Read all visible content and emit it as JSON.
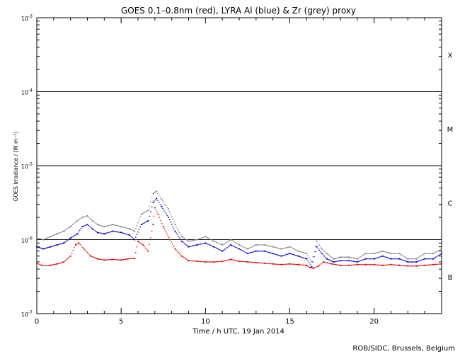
{
  "chart_data": {
    "type": "scatter",
    "title": "GOES 0.1–0.8nm (red), LYRA Al (blue) & Zr (grey) proxy",
    "xlabel": "Time / h UTC, 19 Jan 2014",
    "ylabel": "GOES Irradiance / (W m⁻²)",
    "credit": "ROB/SIDC, Brussels, Belgium",
    "xlim": [
      0,
      24
    ],
    "ylim": [
      1e-07,
      0.001
    ],
    "y_scale": "log",
    "x_ticks": [
      0,
      5,
      10,
      15,
      20
    ],
    "y_ticks": [
      {
        "value": 1e-07,
        "base": "10",
        "exp": "-7"
      },
      {
        "value": 1e-06,
        "base": "10",
        "exp": "-6"
      },
      {
        "value": 1e-05,
        "base": "10",
        "exp": "-5"
      },
      {
        "value": 0.0001,
        "base": "10",
        "exp": "-4"
      },
      {
        "value": 0.001,
        "base": "10",
        "exp": "-3"
      }
    ],
    "flare_classes": [
      {
        "label": "X",
        "value": 0.000316
      },
      {
        "label": "M",
        "value": 3.16e-05
      },
      {
        "label": "C",
        "value": 3.16e-06
      },
      {
        "label": "B",
        "value": 3.16e-07
      }
    ],
    "threshold_lines": [
      1e-06,
      1e-05,
      0.0001
    ],
    "series": [
      {
        "color": "#e00000",
        "x": [
          0.0,
          0.3,
          0.8,
          1.2,
          1.6,
          2.0,
          2.3,
          2.5,
          2.8,
          3.2,
          3.6,
          4.0,
          4.5,
          5.0,
          5.4,
          5.8,
          6.0,
          6.3,
          6.6,
          6.9,
          7.0,
          7.2,
          7.5,
          7.9,
          8.2,
          8.6,
          9.0,
          9.5,
          10.0,
          10.5,
          11.0,
          11.5,
          12.0,
          12.5,
          13.0,
          13.5,
          14.0,
          14.5,
          15.0,
          15.5,
          16.0,
          16.2,
          16.4,
          16.7,
          17.0,
          17.5,
          18.0,
          18.5,
          19.0,
          19.5,
          20.0,
          20.5,
          21.0,
          21.5,
          22.0,
          22.5,
          23.0,
          23.5,
          24.0
        ],
        "y": [
          4.8e-07,
          4.5e-07,
          4.5e-07,
          4.7e-07,
          5e-07,
          6e-07,
          8.5e-07,
          9e-07,
          7.5e-07,
          6e-07,
          5.5e-07,
          5.3e-07,
          5.4e-07,
          5.3e-07,
          5.5e-07,
          5.6e-07,
          9.5e-07,
          8.5e-07,
          7e-07,
          1.6e-06,
          2.7e-06,
          2.2e-06,
          1.5e-06,
          1e-06,
          7.5e-07,
          6e-07,
          5.2e-07,
          5.1e-07,
          5e-07,
          5e-07,
          5.1e-07,
          5.4e-07,
          5.1e-07,
          5e-07,
          4.9e-07,
          4.8e-07,
          4.7e-07,
          4.6e-07,
          4.7e-07,
          4.6e-07,
          4.5e-07,
          4.2e-07,
          4.1e-07,
          4.4e-07,
          5e-07,
          4.7e-07,
          4.5e-07,
          4.5e-07,
          4.6e-07,
          4.6e-07,
          4.6e-07,
          4.5e-07,
          4.6e-07,
          4.5e-07,
          4.4e-07,
          4.4e-07,
          4.5e-07,
          4.6e-07,
          4.7e-07
        ]
      },
      {
        "color": "#0000cc",
        "x": [
          0.0,
          0.4,
          0.8,
          1.2,
          1.6,
          2.0,
          2.4,
          2.7,
          3.0,
          3.3,
          3.6,
          4.0,
          4.5,
          5.0,
          5.5,
          5.8,
          6.2,
          6.6,
          6.9,
          7.1,
          7.4,
          7.8,
          8.2,
          8.6,
          9.0,
          9.5,
          10.0,
          10.5,
          11.0,
          11.5,
          12.0,
          12.5,
          13.0,
          13.5,
          14.0,
          14.5,
          15.0,
          15.5,
          16.0,
          16.3,
          16.6,
          16.9,
          17.2,
          17.6,
          18.0,
          18.5,
          19.0,
          19.5,
          20.0,
          20.5,
          21.0,
          21.5,
          22.0,
          22.5,
          23.0,
          23.5,
          24.0
        ],
        "y": [
          8e-07,
          7.5e-07,
          8e-07,
          8.5e-07,
          9e-07,
          1.05e-06,
          1.2e-06,
          1.5e-06,
          1.6e-06,
          1.4e-06,
          1.25e-06,
          1.2e-06,
          1.3e-06,
          1.25e-06,
          1.15e-06,
          1e-06,
          1.6e-06,
          1.8e-06,
          3.2e-06,
          3.6e-06,
          2.8e-06,
          2e-06,
          1.3e-06,
          9.5e-07,
          8e-07,
          8.5e-07,
          9e-07,
          8e-07,
          7e-07,
          8.5e-07,
          7.5e-07,
          6.5e-07,
          7e-07,
          7e-07,
          6.5e-07,
          6e-07,
          6.5e-07,
          6e-07,
          5.5e-07,
          4.3e-07,
          8e-07,
          6.5e-07,
          5.5e-07,
          5e-07,
          5.2e-07,
          5.2e-07,
          5e-07,
          5.5e-07,
          5.5e-07,
          6e-07,
          5.5e-07,
          5.5e-07,
          5e-07,
          5e-07,
          5.5e-07,
          5.5e-07,
          6.5e-07
        ]
      },
      {
        "color": "#808080",
        "x": [
          0.0,
          0.4,
          0.8,
          1.2,
          1.6,
          2.0,
          2.4,
          2.7,
          3.0,
          3.3,
          3.6,
          4.0,
          4.5,
          5.0,
          5.5,
          5.8,
          6.2,
          6.6,
          6.9,
          7.1,
          7.4,
          7.8,
          8.2,
          8.6,
          9.0,
          9.5,
          10.0,
          10.5,
          11.0,
          11.5,
          12.0,
          12.5,
          13.0,
          13.5,
          14.0,
          14.5,
          15.0,
          15.5,
          16.0,
          16.3,
          16.6,
          16.9,
          17.2,
          17.6,
          18.0,
          18.5,
          19.0,
          19.5,
          20.0,
          20.5,
          21.0,
          21.5,
          22.0,
          22.5,
          23.0,
          23.5,
          24.0
        ],
        "y": [
          1.05e-06,
          1e-06,
          1.1e-06,
          1.2e-06,
          1.3e-06,
          1.5e-06,
          1.8e-06,
          2e-06,
          2.1e-06,
          1.8e-06,
          1.6e-06,
          1.5e-06,
          1.6e-06,
          1.5e-06,
          1.4e-06,
          1.3e-06,
          2.2e-06,
          2.5e-06,
          4.2e-06,
          4.5e-06,
          3.5e-06,
          2.6e-06,
          1.6e-06,
          1.1e-06,
          9.5e-07,
          1e-06,
          1.1e-06,
          9.5e-07,
          8.5e-07,
          1e-06,
          8.5e-07,
          7.5e-07,
          8.5e-07,
          8.5e-07,
          8e-07,
          7.5e-07,
          8e-07,
          7e-07,
          6.5e-07,
          5e-07,
          9.5e-07,
          7.5e-07,
          6.5e-07,
          5.5e-07,
          5.8e-07,
          5.8e-07,
          5.5e-07,
          6.5e-07,
          6.5e-07,
          7e-07,
          6.5e-07,
          6.5e-07,
          5.5e-07,
          5.5e-07,
          6.5e-07,
          6.5e-07,
          7.5e-07
        ]
      }
    ]
  }
}
